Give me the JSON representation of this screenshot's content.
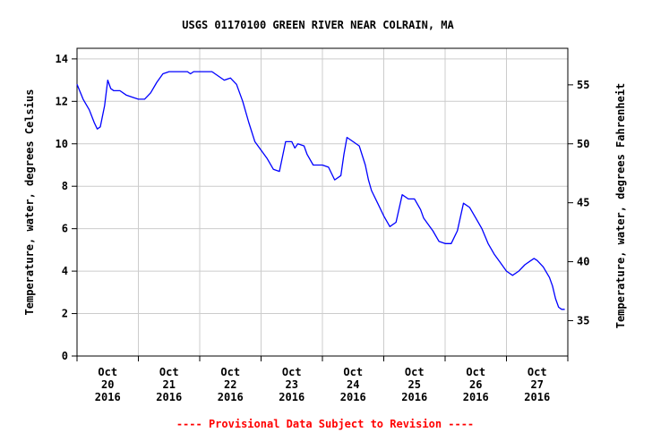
{
  "chart_data": {
    "type": "line",
    "title": "USGS 01170100 GREEN RIVER NEAR COLRAIN, MA",
    "ylabel": "Temperature, water, degrees Celsius",
    "y2label": "Temperature, water, degrees Fahrenheit",
    "footer": "---- Provisional Data Subject to Revision ----",
    "xlim": [
      0,
      8.0
    ],
    "ylim": [
      0,
      14.5
    ],
    "y2lim": [
      32,
      58.1
    ],
    "yticks": [
      0,
      2,
      4,
      6,
      8,
      10,
      12,
      14
    ],
    "y2ticks": [
      35,
      40,
      45,
      50,
      55
    ],
    "xticks": [
      {
        "x": 0.5,
        "lines": [
          "Oct",
          "20",
          "2016"
        ]
      },
      {
        "x": 1.5,
        "lines": [
          "Oct",
          "21",
          "2016"
        ]
      },
      {
        "x": 2.5,
        "lines": [
          "Oct",
          "22",
          "2016"
        ]
      },
      {
        "x": 3.5,
        "lines": [
          "Oct",
          "23",
          "2016"
        ]
      },
      {
        "x": 4.5,
        "lines": [
          "Oct",
          "24",
          "2016"
        ]
      },
      {
        "x": 5.5,
        "lines": [
          "Oct",
          "25",
          "2016"
        ]
      },
      {
        "x": 6.5,
        "lines": [
          "Oct",
          "26",
          "2016"
        ]
      },
      {
        "x": 7.5,
        "lines": [
          "Oct",
          "27",
          "2016"
        ]
      }
    ],
    "grid": true,
    "colors": {
      "line": "#0000ff",
      "grid": "#cccccc",
      "axis": "#000000",
      "footer": "#ff0000"
    },
    "series": [
      {
        "name": "",
        "x": [
          0.0,
          0.1,
          0.2,
          0.28,
          0.33,
          0.38,
          0.45,
          0.5,
          0.55,
          0.6,
          0.7,
          0.8,
          0.9,
          1.0,
          1.1,
          1.2,
          1.3,
          1.4,
          1.5,
          1.6,
          1.7,
          1.8,
          1.85,
          1.9,
          2.0,
          2.2,
          2.4,
          2.5,
          2.6,
          2.7,
          2.8,
          2.9,
          3.0,
          3.1,
          3.2,
          3.3,
          3.4,
          3.5,
          3.55,
          3.6,
          3.7,
          3.75,
          3.85,
          3.9,
          4.0,
          4.1,
          4.2,
          4.3,
          4.35,
          4.4,
          4.5,
          4.6,
          4.7,
          4.75,
          4.8,
          4.9,
          5.0,
          5.1,
          5.2,
          5.3,
          5.4,
          5.5,
          5.6,
          5.65,
          5.7,
          5.8,
          5.9,
          6.0,
          6.1,
          6.2,
          6.3,
          6.4,
          6.5,
          6.6,
          6.7,
          6.8,
          6.9,
          7.0,
          7.1,
          7.2,
          7.3,
          7.4,
          7.45,
          7.5,
          7.6,
          7.7,
          7.75,
          7.8,
          7.85,
          7.9,
          7.95
        ],
        "y": [
          12.8,
          12.1,
          11.6,
          11.0,
          10.7,
          10.8,
          11.8,
          13.0,
          12.6,
          12.5,
          12.5,
          12.3,
          12.2,
          12.1,
          12.1,
          12.4,
          12.9,
          13.3,
          13.4,
          13.4,
          13.4,
          13.4,
          13.3,
          13.4,
          13.4,
          13.4,
          13.0,
          13.1,
          12.8,
          12.0,
          11.0,
          10.1,
          9.7,
          9.3,
          8.8,
          8.7,
          10.1,
          10.1,
          9.8,
          10.0,
          9.9,
          9.5,
          9.0,
          9.0,
          9.0,
          8.9,
          8.3,
          8.5,
          9.5,
          10.3,
          10.1,
          9.9,
          9.0,
          8.3,
          7.8,
          7.2,
          6.6,
          6.1,
          6.3,
          7.6,
          7.4,
          7.4,
          6.9,
          6.5,
          6.3,
          5.9,
          5.4,
          5.3,
          5.3,
          5.9,
          7.2,
          7.0,
          6.5,
          6.0,
          5.3,
          4.8,
          4.4,
          4.0,
          3.8,
          4.0,
          4.3,
          4.5,
          4.6,
          4.5,
          4.2,
          3.7,
          3.3,
          2.7,
          2.3,
          2.2,
          2.2
        ]
      }
    ]
  }
}
